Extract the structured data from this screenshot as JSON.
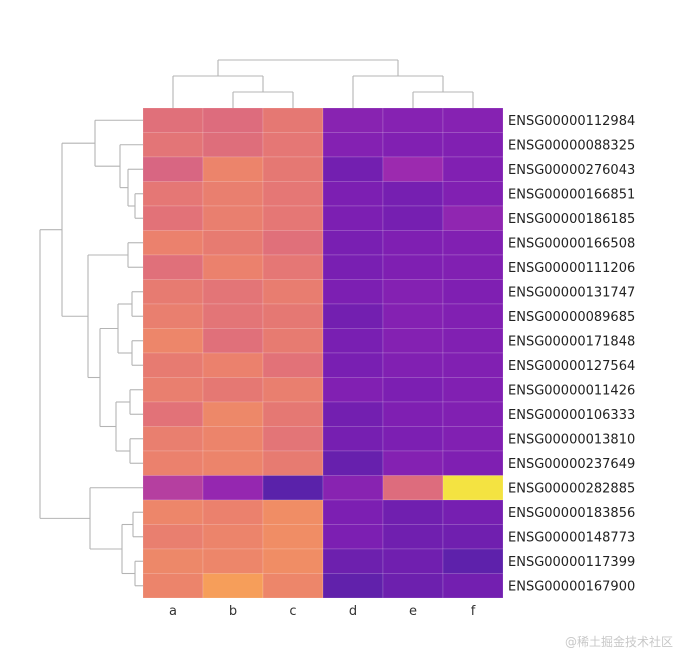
{
  "chart_data": {
    "type": "heatmap",
    "colormap": "plasma",
    "columns": [
      "a",
      "b",
      "c",
      "d",
      "e",
      "f"
    ],
    "rows": [
      "ENSG00000112984",
      "ENSG00000088325",
      "ENSG00000276043",
      "ENSG00000166851",
      "ENSG00000186185",
      "ENSG00000166508",
      "ENSG00000111206",
      "ENSG00000131747",
      "ENSG00000089685",
      "ENSG00000171848",
      "ENSG00000127564",
      "ENSG00000011426",
      "ENSG00000106333",
      "ENSG00000013810",
      "ENSG00000237649",
      "ENSG00000282885",
      "ENSG00000183856",
      "ENSG00000148773",
      "ENSG00000117399",
      "ENSG00000167900"
    ],
    "values": [
      [
        0.72,
        0.7,
        0.76,
        0.3,
        0.29,
        0.29
      ],
      [
        0.74,
        0.71,
        0.75,
        0.28,
        0.27,
        0.27
      ],
      [
        0.67,
        0.81,
        0.76,
        0.22,
        0.38,
        0.27
      ],
      [
        0.75,
        0.79,
        0.75,
        0.25,
        0.23,
        0.27
      ],
      [
        0.73,
        0.79,
        0.75,
        0.25,
        0.23,
        0.33
      ],
      [
        0.8,
        0.77,
        0.72,
        0.24,
        0.26,
        0.27
      ],
      [
        0.72,
        0.8,
        0.75,
        0.24,
        0.26,
        0.27
      ],
      [
        0.77,
        0.74,
        0.78,
        0.25,
        0.28,
        0.26
      ],
      [
        0.79,
        0.74,
        0.76,
        0.22,
        0.28,
        0.27
      ],
      [
        0.82,
        0.72,
        0.77,
        0.24,
        0.28,
        0.27
      ],
      [
        0.77,
        0.8,
        0.73,
        0.24,
        0.27,
        0.27
      ],
      [
        0.79,
        0.76,
        0.79,
        0.27,
        0.25,
        0.27
      ],
      [
        0.73,
        0.83,
        0.76,
        0.22,
        0.26,
        0.27
      ],
      [
        0.79,
        0.81,
        0.74,
        0.23,
        0.25,
        0.27
      ],
      [
        0.8,
        0.81,
        0.77,
        0.18,
        0.28,
        0.26
      ],
      [
        0.48,
        0.35,
        0.14,
        0.3,
        0.7,
        0.98
      ],
      [
        0.82,
        0.8,
        0.85,
        0.25,
        0.21,
        0.23
      ],
      [
        0.79,
        0.81,
        0.85,
        0.25,
        0.21,
        0.21
      ],
      [
        0.83,
        0.82,
        0.85,
        0.2,
        0.21,
        0.15
      ],
      [
        0.81,
        0.9,
        0.82,
        0.16,
        0.2,
        0.22
      ]
    ]
  },
  "watermark": "@稀土掘金技术社区"
}
